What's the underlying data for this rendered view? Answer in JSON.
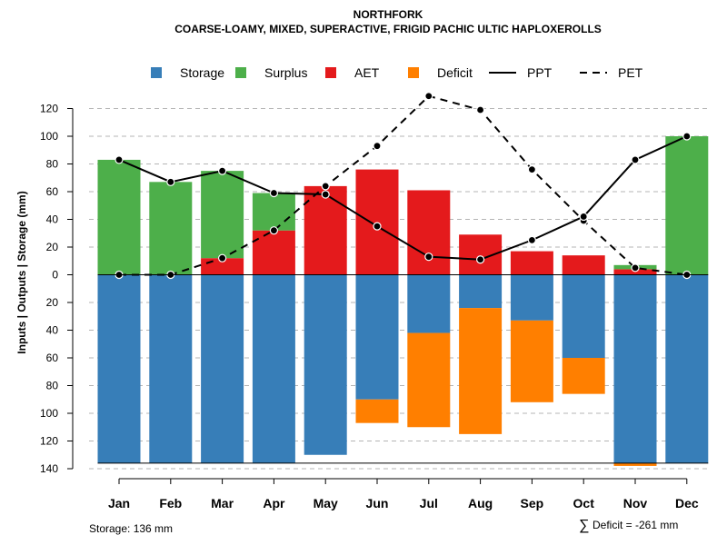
{
  "chart_data": {
    "type": "bar",
    "title": "NORTHFORK",
    "subtitle": "COARSE-LOAMY, MIXED, SUPERACTIVE, FRIGID PACHIC ULTIC HAPLOXEROLLS",
    "ylabel": "Inputs | Outputs | Storage    (mm)",
    "categories": [
      "Jan",
      "Feb",
      "Mar",
      "Apr",
      "May",
      "Jun",
      "Jul",
      "Aug",
      "Sep",
      "Oct",
      "Nov",
      "Dec"
    ],
    "ylim": [
      -140,
      130
    ],
    "y_ticks": [
      120,
      100,
      80,
      60,
      40,
      20,
      0,
      -20,
      -40,
      -60,
      -80,
      -100,
      -120,
      -140
    ],
    "y_tick_labels": [
      "120",
      "100",
      "80",
      "60",
      "40",
      "20",
      "0",
      "20",
      "40",
      "60",
      "80",
      "100",
      "120",
      "140"
    ],
    "storage_capacity": 136,
    "series": [
      {
        "name": "Storage",
        "color": "#377EB8",
        "values": [
          136,
          136,
          136,
          136,
          130,
          90,
          42,
          24,
          33,
          60,
          136,
          136
        ]
      },
      {
        "name": "Surplus",
        "color": "#4DAF4A",
        "values": [
          83,
          67,
          63,
          27,
          0,
          0,
          0,
          0,
          0,
          0,
          3,
          100
        ]
      },
      {
        "name": "AET",
        "color": "#E41A1C",
        "values": [
          0,
          0,
          12,
          32,
          64,
          76,
          61,
          29,
          17,
          14,
          4,
          0
        ]
      },
      {
        "name": "Deficit",
        "color": "#FF7F00",
        "values": [
          0,
          0,
          0,
          0,
          0,
          17,
          68,
          91,
          59,
          26,
          2,
          0
        ]
      },
      {
        "name": "PPT",
        "color": "#000000",
        "values": [
          83,
          67,
          75,
          59,
          58,
          35,
          13,
          11,
          25,
          42,
          83,
          100
        ]
      },
      {
        "name": "PET",
        "color": "#000000",
        "values": [
          0,
          0,
          12,
          32,
          64,
          93,
          129,
          119,
          76,
          39,
          5,
          0
        ]
      }
    ],
    "legend": [
      {
        "label": "Storage",
        "kind": "square",
        "color": "#377EB8"
      },
      {
        "label": "Surplus",
        "kind": "square",
        "color": "#4DAF4A"
      },
      {
        "label": "AET",
        "kind": "square",
        "color": "#E41A1C"
      },
      {
        "label": "Deficit",
        "kind": "square",
        "color": "#FF7F00"
      },
      {
        "label": "PPT",
        "kind": "solid"
      },
      {
        "label": "PET",
        "kind": "dashed"
      }
    ],
    "legend_position": "top",
    "grid": true,
    "notes": {
      "storage": "Storage: 136 mm",
      "deficit_symbol": "∑",
      "deficit": "Deficit = -261 mm"
    }
  }
}
